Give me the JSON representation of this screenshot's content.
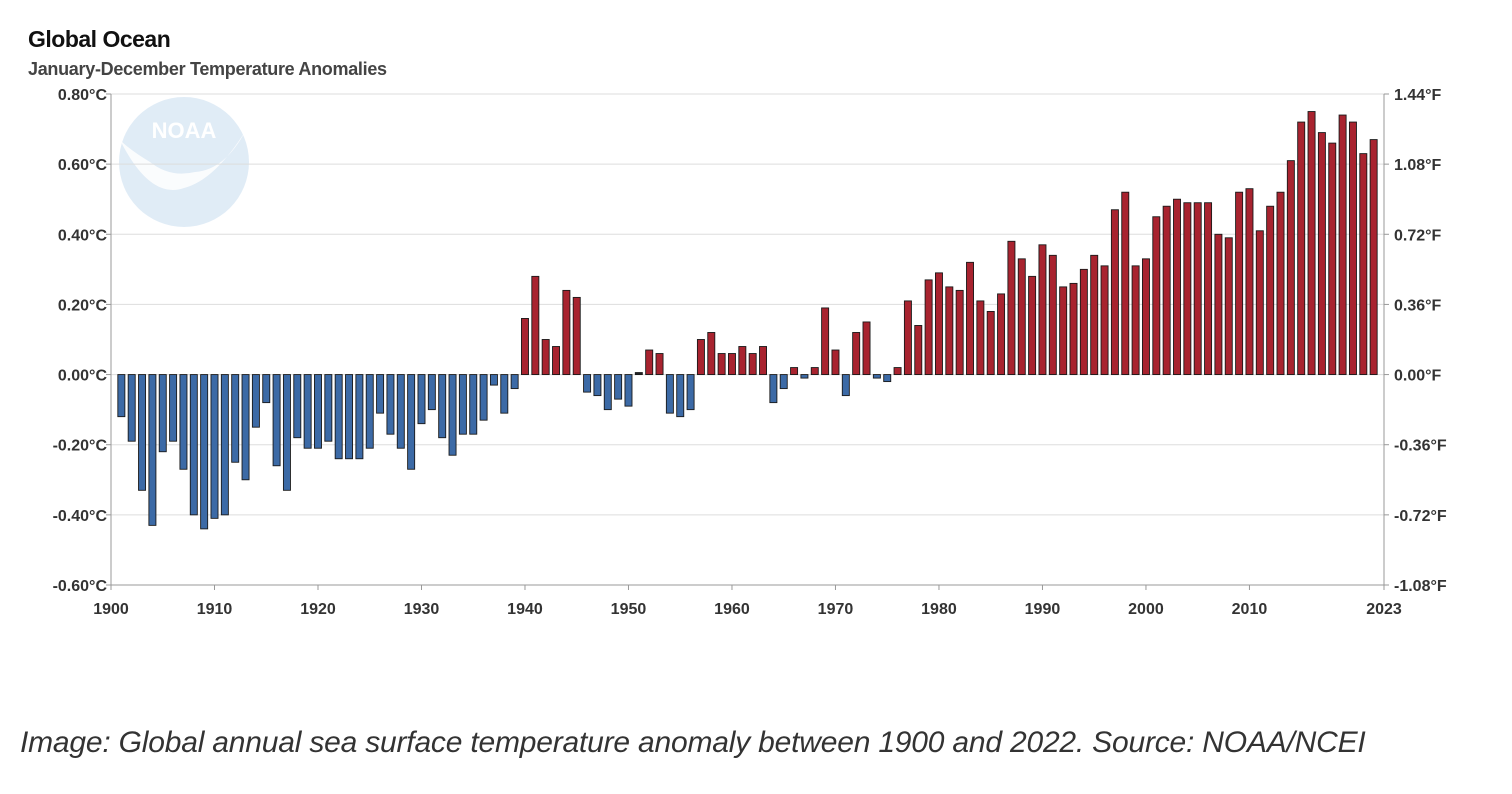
{
  "header": {
    "title": "Global Ocean",
    "subtitle": "January-December Temperature Anomalies"
  },
  "logo": {
    "text": "NOAA"
  },
  "caption": "Image: Global annual sea surface temperature anomaly between 1900 and 2022. Source: NOAA/NCEI",
  "colors": {
    "positive": "#a8232f",
    "negative": "#3c6aa6",
    "grid": "#dddddd",
    "axis": "#999999"
  },
  "chart_data": {
    "type": "bar",
    "title": "Global Ocean",
    "subtitle": "January-December Temperature Anomalies",
    "xlabel": "",
    "ylabel": "",
    "ylim": [
      -0.6,
      0.8
    ],
    "grid": true,
    "x_ticks": [
      "1900",
      "1910",
      "1920",
      "1930",
      "1940",
      "1950",
      "1960",
      "1970",
      "1980",
      "1990",
      "2000",
      "2010",
      "2023"
    ],
    "y_ticks_left": [
      "0.80°C",
      "0.60°C",
      "0.40°C",
      "0.20°C",
      "0.00°C",
      "-0.20°C",
      "-0.40°C",
      "-0.60°C"
    ],
    "y_ticks_right": [
      "1.44°F",
      "1.08°F",
      "0.72°F",
      "0.36°F",
      "0.00°F",
      "-0.36°F",
      "-0.72°F",
      "-1.08°F"
    ],
    "x": [
      1901,
      1902,
      1903,
      1904,
      1905,
      1906,
      1907,
      1908,
      1909,
      1910,
      1911,
      1912,
      1913,
      1914,
      1915,
      1916,
      1917,
      1918,
      1919,
      1920,
      1921,
      1922,
      1923,
      1924,
      1925,
      1926,
      1927,
      1928,
      1929,
      1930,
      1931,
      1932,
      1933,
      1934,
      1935,
      1936,
      1937,
      1938,
      1939,
      1940,
      1941,
      1942,
      1943,
      1944,
      1945,
      1946,
      1947,
      1948,
      1949,
      1950,
      1951,
      1952,
      1953,
      1954,
      1955,
      1956,
      1957,
      1958,
      1959,
      1960,
      1961,
      1962,
      1963,
      1964,
      1965,
      1966,
      1967,
      1968,
      1969,
      1970,
      1971,
      1972,
      1973,
      1974,
      1975,
      1976,
      1977,
      1978,
      1979,
      1980,
      1981,
      1982,
      1983,
      1984,
      1985,
      1986,
      1987,
      1988,
      1989,
      1990,
      1991,
      1992,
      1993,
      1994,
      1995,
      1996,
      1997,
      1998,
      1999,
      2000,
      2001,
      2002,
      2003,
      2004,
      2005,
      2006,
      2007,
      2008,
      2009,
      2010,
      2011,
      2012,
      2013,
      2014,
      2015,
      2016,
      2017,
      2018,
      2019,
      2020,
      2021,
      2022
    ],
    "values": [
      -0.12,
      -0.19,
      -0.33,
      -0.43,
      -0.22,
      -0.19,
      -0.27,
      -0.4,
      -0.44,
      -0.41,
      -0.4,
      -0.25,
      -0.3,
      -0.15,
      -0.08,
      -0.26,
      -0.33,
      -0.18,
      -0.21,
      -0.21,
      -0.19,
      -0.24,
      -0.24,
      -0.24,
      -0.21,
      -0.11,
      -0.17,
      -0.21,
      -0.27,
      -0.14,
      -0.1,
      -0.18,
      -0.23,
      -0.17,
      -0.17,
      -0.13,
      -0.03,
      -0.11,
      -0.04,
      0.16,
      0.28,
      0.1,
      0.08,
      0.24,
      0.22,
      -0.05,
      -0.06,
      -0.1,
      -0.07,
      -0.09,
      0.0,
      0.07,
      0.06,
      -0.11,
      -0.12,
      -0.1,
      0.1,
      0.12,
      0.06,
      0.06,
      0.08,
      0.06,
      0.08,
      -0.08,
      -0.04,
      0.02,
      -0.01,
      0.02,
      0.19,
      0.07,
      -0.06,
      0.12,
      0.15,
      -0.01,
      -0.02,
      0.02,
      0.21,
      0.14,
      0.27,
      0.29,
      0.25,
      0.24,
      0.32,
      0.21,
      0.18,
      0.23,
      0.38,
      0.33,
      0.28,
      0.37,
      0.34,
      0.25,
      0.26,
      0.3,
      0.34,
      0.31,
      0.47,
      0.52,
      0.31,
      0.33,
      0.45,
      0.48,
      0.5,
      0.49,
      0.49,
      0.49,
      0.4,
      0.39,
      0.52,
      0.53,
      0.41,
      0.48,
      0.52,
      0.61,
      0.72,
      0.75,
      0.69,
      0.66,
      0.74,
      0.72,
      0.63,
      0.67
    ]
  }
}
